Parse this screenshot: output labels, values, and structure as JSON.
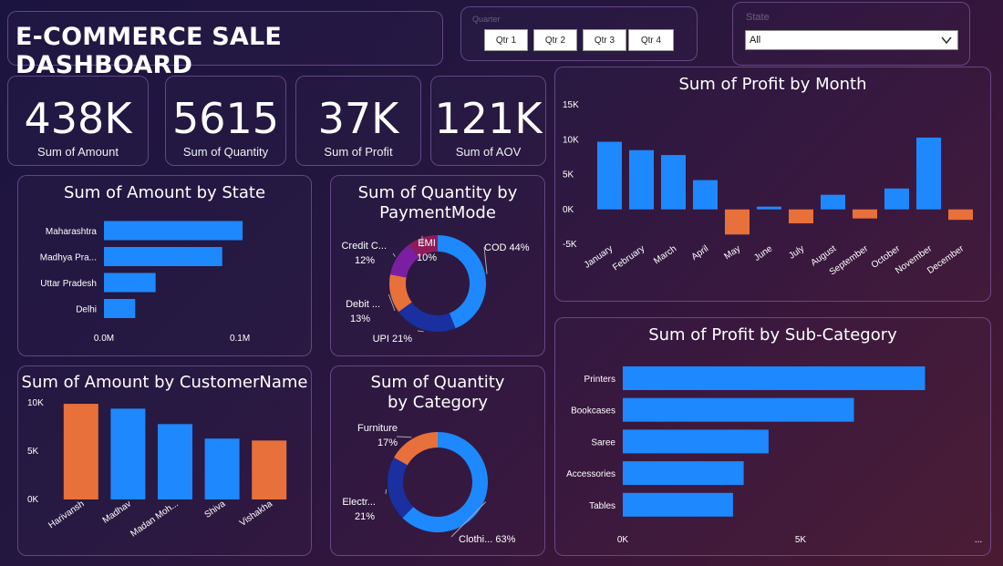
{
  "header": {
    "title": "E-COMMERCE SALE DASHBOARD"
  },
  "quarter_slicer": {
    "label": "Quarter",
    "options": [
      "Qtr 1",
      "Qtr 2",
      "Qtr 3",
      "Qtr 4"
    ]
  },
  "state_slicer": {
    "label": "State",
    "selected": "All"
  },
  "kpis": [
    {
      "value": "438K",
      "label": "Sum of Amount"
    },
    {
      "value": "5615",
      "label": "Sum of Quantity"
    },
    {
      "value": "37K",
      "label": "Sum of Profit"
    },
    {
      "value": "121K",
      "label": "Sum of AOV"
    }
  ],
  "colors": {
    "blue": "#1e88ff",
    "orange": "#e8703a",
    "navy": "#1a2fa0",
    "purple": "#7b1fa2",
    "maroon": "#8e1c5a"
  },
  "chart_data": [
    {
      "id": "amount_by_state",
      "type": "bar",
      "orientation": "horizontal",
      "title": "Sum of Amount by State",
      "categories": [
        "Maharashtra",
        "Madhya Pra...",
        "Uttar Pradesh",
        "Delhi"
      ],
      "values": [
        0.102,
        0.087,
        0.038,
        0.023
      ],
      "xtick_labels": [
        "0.0M",
        "0.1M"
      ],
      "xticks": [
        0,
        0.1
      ],
      "xlim": [
        0,
        0.11
      ],
      "unit": "M"
    },
    {
      "id": "quantity_by_paymentmode",
      "type": "pie",
      "donut": true,
      "title": "Sum of Quantity by PaymentMode",
      "slices": [
        {
          "label": "COD",
          "value": 44,
          "display": "COD 44%",
          "color": "#1e88ff"
        },
        {
          "label": "UPI",
          "value": 21,
          "display": "UPI 21%",
          "color": "#1a2fa0"
        },
        {
          "label": "Debit ...",
          "value": 13,
          "display": "13%",
          "color": "#e8703a"
        },
        {
          "label": "Credit C...",
          "value": 12,
          "display": "12%",
          "color": "#7b1fa2"
        },
        {
          "label": "EMI",
          "value": 10,
          "display": "10%",
          "color": "#8e1c5a"
        }
      ]
    },
    {
      "id": "profit_by_month",
      "type": "bar",
      "title": "Sum of Profit by Month",
      "categories": [
        "January",
        "February",
        "March",
        "April",
        "May",
        "June",
        "July",
        "August",
        "September",
        "October",
        "November",
        "December"
      ],
      "values": [
        9700,
        8500,
        7800,
        4200,
        -3600,
        400,
        -2000,
        2100,
        -1300,
        3000,
        10300,
        -1500
      ],
      "ylim": [
        -5000,
        15000
      ],
      "yticks": [
        -5000,
        0,
        5000,
        10000,
        15000
      ],
      "ytick_labels": [
        "-5K",
        "0K",
        "5K",
        "10K",
        "15K"
      ]
    },
    {
      "id": "amount_by_customer",
      "type": "bar",
      "title": "Sum of Amount by CustomerName",
      "categories": [
        "Harivansh",
        "Madhav",
        "Madan Moh...",
        "Shiva",
        "Vishakha"
      ],
      "values": [
        9900,
        9400,
        7800,
        6300,
        6100
      ],
      "bar_colors": [
        "#e8703a",
        "#1e88ff",
        "#1e88ff",
        "#1e88ff",
        "#e8703a"
      ],
      "ylim": [
        0,
        10000
      ],
      "yticks": [
        0,
        5000,
        10000
      ],
      "ytick_labels": [
        "0K",
        "5K",
        "10K"
      ]
    },
    {
      "id": "quantity_by_category",
      "type": "pie",
      "donut": true,
      "title": "Sum of Quantity by Category",
      "slices": [
        {
          "label": "Clothi...",
          "value": 63,
          "display": "Clothi... 63%",
          "color": "#1e88ff"
        },
        {
          "label": "Electr...",
          "value": 21,
          "display": "21%",
          "color": "#1a2fa0"
        },
        {
          "label": "Furniture",
          "value": 17,
          "display": "17%",
          "color": "#e8703a"
        }
      ]
    },
    {
      "id": "profit_by_subcategory",
      "type": "bar",
      "orientation": "horizontal",
      "title": "Sum of Profit by Sub-Category",
      "categories": [
        "Printers",
        "Bookcases",
        "Saree",
        "Accessories",
        "Tables"
      ],
      "values": [
        8500,
        6500,
        4100,
        3400,
        3100
      ],
      "xlim": [
        0,
        10000
      ],
      "xticks": [
        0,
        5000
      ],
      "xtick_labels": [
        "0K",
        "5K"
      ],
      "xtick_more": "..."
    }
  ]
}
